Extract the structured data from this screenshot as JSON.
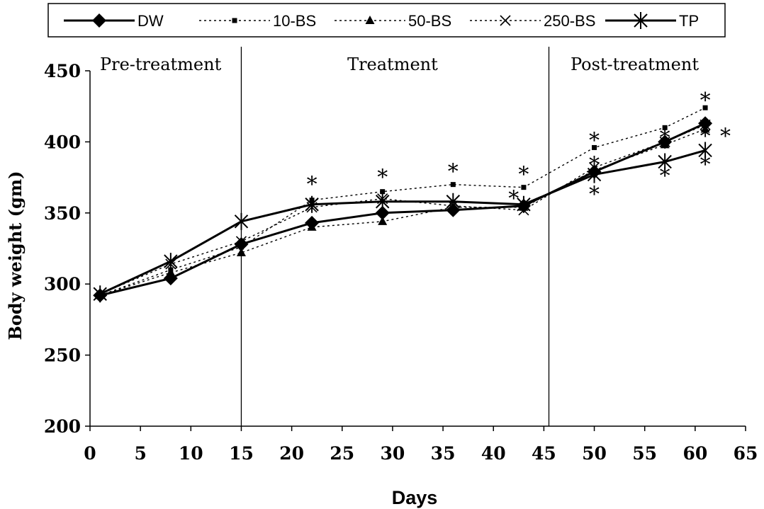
{
  "chart_data": {
    "type": "line",
    "title": "",
    "xlabel": "Days",
    "ylabel": "Body weight (gm)",
    "xlim": [
      0,
      65
    ],
    "ylim": [
      200,
      450
    ],
    "xticks": [
      0,
      5,
      10,
      15,
      20,
      25,
      30,
      35,
      40,
      45,
      50,
      55,
      60,
      65
    ],
    "yticks": [
      200,
      250,
      300,
      350,
      400,
      450
    ],
    "grid": false,
    "legend_position": "top",
    "phase_dividers": [
      15,
      45.5
    ],
    "phases": [
      {
        "label": "Pre-treatment",
        "x": 7
      },
      {
        "label": "Treatment",
        "x": 30
      },
      {
        "label": "Post-treatment",
        "x": 54
      }
    ],
    "x": [
      1,
      8,
      15,
      22,
      29,
      36,
      43,
      50,
      57,
      61
    ],
    "series": [
      {
        "name": "DW",
        "style": "solid",
        "marker": "diamond",
        "color": "#000000",
        "values": [
          292,
          304,
          328,
          343,
          350,
          352,
          355,
          379,
          400,
          413
        ]
      },
      {
        "name": "10-BS",
        "style": "dotted",
        "marker": "square",
        "color": "#000000",
        "values": [
          292,
          310,
          326,
          359,
          365,
          370,
          368,
          396,
          410,
          424
        ]
      },
      {
        "name": "50-BS",
        "style": "dotted",
        "marker": "triangle",
        "color": "#000000",
        "values": [
          292,
          308,
          322,
          340,
          344,
          354,
          354,
          380,
          398,
          409
        ]
      },
      {
        "name": "250-BS",
        "style": "dotted",
        "marker": "x",
        "color": "#000000",
        "values": [
          293,
          314,
          330,
          354,
          360,
          355,
          352,
          382,
          400,
          412
        ]
      },
      {
        "name": "TP",
        "style": "solid",
        "marker": "star",
        "color": "#000000",
        "values": [
          293,
          316,
          344,
          356,
          358,
          358,
          356,
          377,
          386,
          394
        ]
      }
    ],
    "annotations": [
      {
        "text": "*",
        "x": 22,
        "y": 372
      },
      {
        "text": "*",
        "x": 29,
        "y": 377
      },
      {
        "text": "*",
        "x": 36,
        "y": 381
      },
      {
        "text": "*",
        "x": 43,
        "y": 379
      },
      {
        "text": "*",
        "x": 42,
        "y": 362
      },
      {
        "text": "*",
        "x": 50,
        "y": 403
      },
      {
        "text": "*",
        "x": 50,
        "y": 386
      },
      {
        "text": "*",
        "x": 50,
        "y": 365
      },
      {
        "text": "*",
        "x": 57,
        "y": 405
      },
      {
        "text": "*",
        "x": 57,
        "y": 378
      },
      {
        "text": "*",
        "x": 61,
        "y": 431
      },
      {
        "text": "*",
        "x": 61,
        "y": 406
      },
      {
        "text": "*",
        "x": 63,
        "y": 406
      },
      {
        "text": "*",
        "x": 61,
        "y": 386
      }
    ]
  }
}
